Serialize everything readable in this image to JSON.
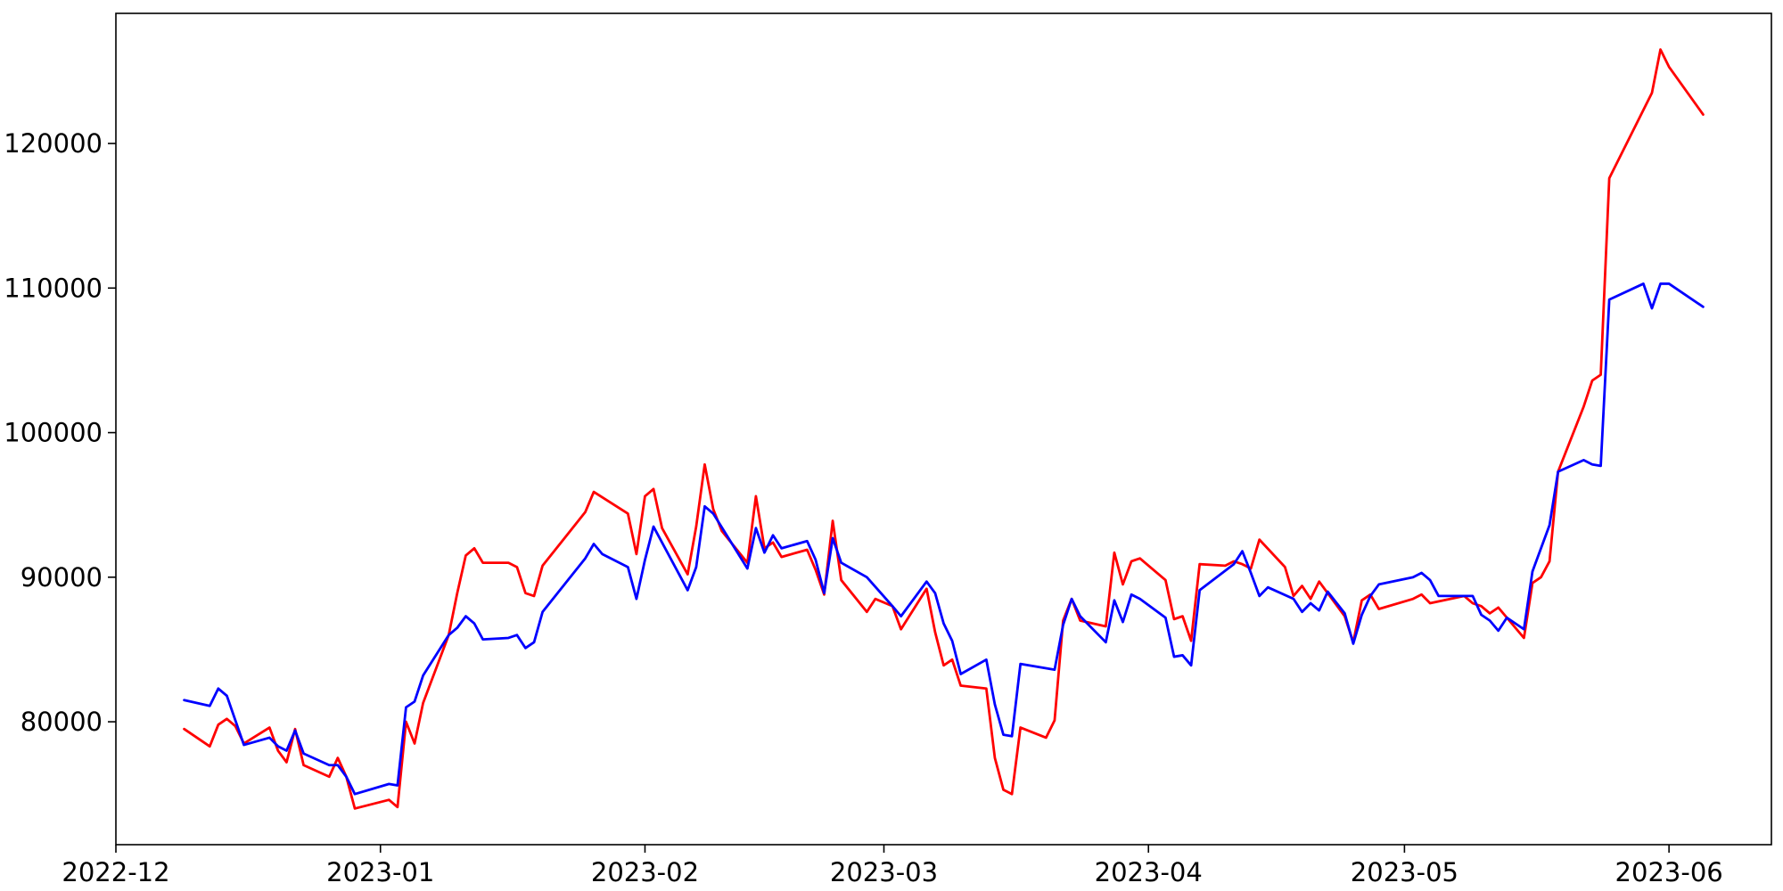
{
  "chart_data": {
    "type": "line",
    "title": "",
    "xlabel": "",
    "ylabel": "",
    "grid": false,
    "legend": "none",
    "xlim": [
      "2022-12-01",
      "2023-06-13"
    ],
    "ylim": [
      71500,
      129000
    ],
    "x_ticks": [
      "2022-12",
      "2023-01",
      "2023-02",
      "2023-03",
      "2023-04",
      "2023-05",
      "2023-06"
    ],
    "x_tick_dates": [
      "2022-12-01",
      "2023-01-01",
      "2023-02-01",
      "2023-03-01",
      "2023-04-01",
      "2023-05-01",
      "2023-06-01"
    ],
    "y_ticks": [
      80000,
      90000,
      100000,
      110000,
      120000
    ],
    "series": [
      {
        "color": "#ff0000",
        "points": [
          [
            "2022-12-09",
            79500
          ],
          [
            "2022-12-12",
            78300
          ],
          [
            "2022-12-13",
            79800
          ],
          [
            "2022-12-14",
            80200
          ],
          [
            "2022-12-15",
            79700
          ],
          [
            "2022-12-16",
            78500
          ],
          [
            "2022-12-19",
            79600
          ],
          [
            "2022-12-20",
            78000
          ],
          [
            "2022-12-21",
            77200
          ],
          [
            "2022-12-22",
            79500
          ],
          [
            "2022-12-23",
            77000
          ],
          [
            "2022-12-26",
            76200
          ],
          [
            "2022-12-27",
            77500
          ],
          [
            "2022-12-28",
            76200
          ],
          [
            "2022-12-29",
            74000
          ],
          [
            "2023-01-02",
            74600
          ],
          [
            "2023-01-03",
            74100
          ],
          [
            "2023-01-04",
            80000
          ],
          [
            "2023-01-05",
            78500
          ],
          [
            "2023-01-06",
            81300
          ],
          [
            "2023-01-09",
            86000
          ],
          [
            "2023-01-10",
            88900
          ],
          [
            "2023-01-11",
            91500
          ],
          [
            "2023-01-12",
            92000
          ],
          [
            "2023-01-13",
            91000
          ],
          [
            "2023-01-16",
            91000
          ],
          [
            "2023-01-17",
            90700
          ],
          [
            "2023-01-18",
            88900
          ],
          [
            "2023-01-19",
            88700
          ],
          [
            "2023-01-20",
            90800
          ],
          [
            "2023-01-25",
            94500
          ],
          [
            "2023-01-26",
            95900
          ],
          [
            "2023-01-30",
            94400
          ],
          [
            "2023-01-31",
            91600
          ],
          [
            "2023-02-01",
            95600
          ],
          [
            "2023-02-02",
            96100
          ],
          [
            "2023-02-03",
            93400
          ],
          [
            "2023-02-06",
            90200
          ],
          [
            "2023-02-07",
            93500
          ],
          [
            "2023-02-08",
            97800
          ],
          [
            "2023-02-09",
            94700
          ],
          [
            "2023-02-10",
            93200
          ],
          [
            "2023-02-13",
            91000
          ],
          [
            "2023-02-14",
            95600
          ],
          [
            "2023-02-15",
            92000
          ],
          [
            "2023-02-16",
            92400
          ],
          [
            "2023-02-17",
            91400
          ],
          [
            "2023-02-20",
            91900
          ],
          [
            "2023-02-21",
            90500
          ],
          [
            "2023-02-22",
            88800
          ],
          [
            "2023-02-23",
            93900
          ],
          [
            "2023-02-24",
            89800
          ],
          [
            "2023-02-27",
            87600
          ],
          [
            "2023-02-28",
            88500
          ],
          [
            "2023-03-02",
            88000
          ],
          [
            "2023-03-03",
            86400
          ],
          [
            "2023-03-06",
            89200
          ],
          [
            "2023-03-07",
            86200
          ],
          [
            "2023-03-08",
            83900
          ],
          [
            "2023-03-09",
            84300
          ],
          [
            "2023-03-10",
            82500
          ],
          [
            "2023-03-13",
            82300
          ],
          [
            "2023-03-14",
            77500
          ],
          [
            "2023-03-15",
            75300
          ],
          [
            "2023-03-16",
            75000
          ],
          [
            "2023-03-17",
            79600
          ],
          [
            "2023-03-20",
            78900
          ],
          [
            "2023-03-21",
            80100
          ],
          [
            "2023-03-22",
            87000
          ],
          [
            "2023-03-23",
            88500
          ],
          [
            "2023-03-24",
            87000
          ],
          [
            "2023-03-27",
            86600
          ],
          [
            "2023-03-28",
            91700
          ],
          [
            "2023-03-29",
            89500
          ],
          [
            "2023-03-30",
            91100
          ],
          [
            "2023-03-31",
            91300
          ],
          [
            "2023-04-03",
            89800
          ],
          [
            "2023-04-04",
            87100
          ],
          [
            "2023-04-05",
            87300
          ],
          [
            "2023-04-06",
            85600
          ],
          [
            "2023-04-07",
            90900
          ],
          [
            "2023-04-10",
            90800
          ],
          [
            "2023-04-11",
            91100
          ],
          [
            "2023-04-12",
            90900
          ],
          [
            "2023-04-13",
            90600
          ],
          [
            "2023-04-14",
            92600
          ],
          [
            "2023-04-17",
            90700
          ],
          [
            "2023-04-18",
            88700
          ],
          [
            "2023-04-19",
            89400
          ],
          [
            "2023-04-20",
            88500
          ],
          [
            "2023-04-21",
            89700
          ],
          [
            "2023-04-24",
            87300
          ],
          [
            "2023-04-25",
            85500
          ],
          [
            "2023-04-26",
            88400
          ],
          [
            "2023-04-27",
            88800
          ],
          [
            "2023-04-28",
            87800
          ],
          [
            "2023-05-02",
            88500
          ],
          [
            "2023-05-03",
            88800
          ],
          [
            "2023-05-04",
            88200
          ],
          [
            "2023-05-08",
            88700
          ],
          [
            "2023-05-09",
            88200
          ],
          [
            "2023-05-10",
            88000
          ],
          [
            "2023-05-11",
            87500
          ],
          [
            "2023-05-12",
            87900
          ],
          [
            "2023-05-15",
            85800
          ],
          [
            "2023-05-16",
            89600
          ],
          [
            "2023-05-17",
            90000
          ],
          [
            "2023-05-18",
            91100
          ],
          [
            "2023-05-19",
            97300
          ],
          [
            "2023-05-22",
            101800
          ],
          [
            "2023-05-23",
            103600
          ],
          [
            "2023-05-24",
            104000
          ],
          [
            "2023-05-25",
            117600
          ],
          [
            "2023-05-30",
            123500
          ],
          [
            "2023-05-31",
            126500
          ],
          [
            "2023-06-01",
            125300
          ],
          [
            "2023-06-05",
            122000
          ]
        ]
      },
      {
        "color": "#0000ff",
        "points": [
          [
            "2022-12-09",
            81500
          ],
          [
            "2022-12-12",
            81100
          ],
          [
            "2022-12-13",
            82300
          ],
          [
            "2022-12-14",
            81800
          ],
          [
            "2022-12-16",
            78400
          ],
          [
            "2022-12-19",
            78900
          ],
          [
            "2022-12-20",
            78300
          ],
          [
            "2022-12-21",
            78000
          ],
          [
            "2022-12-22",
            79400
          ],
          [
            "2022-12-23",
            77800
          ],
          [
            "2022-12-26",
            77000
          ],
          [
            "2022-12-27",
            77000
          ],
          [
            "2022-12-28",
            76200
          ],
          [
            "2022-12-29",
            75000
          ],
          [
            "2023-01-02",
            75700
          ],
          [
            "2023-01-03",
            75600
          ],
          [
            "2023-01-04",
            81000
          ],
          [
            "2023-01-05",
            81400
          ],
          [
            "2023-01-06",
            83200
          ],
          [
            "2023-01-09",
            86000
          ],
          [
            "2023-01-10",
            86500
          ],
          [
            "2023-01-11",
            87300
          ],
          [
            "2023-01-12",
            86800
          ],
          [
            "2023-01-13",
            85700
          ],
          [
            "2023-01-16",
            85800
          ],
          [
            "2023-01-17",
            86000
          ],
          [
            "2023-01-18",
            85100
          ],
          [
            "2023-01-19",
            85500
          ],
          [
            "2023-01-20",
            87600
          ],
          [
            "2023-01-25",
            91300
          ],
          [
            "2023-01-26",
            92300
          ],
          [
            "2023-01-27",
            91600
          ],
          [
            "2023-01-30",
            90700
          ],
          [
            "2023-01-31",
            88500
          ],
          [
            "2023-02-01",
            91200
          ],
          [
            "2023-02-02",
            93500
          ],
          [
            "2023-02-06",
            89100
          ],
          [
            "2023-02-07",
            90700
          ],
          [
            "2023-02-08",
            94900
          ],
          [
            "2023-02-09",
            94400
          ],
          [
            "2023-02-13",
            90600
          ],
          [
            "2023-02-14",
            93400
          ],
          [
            "2023-02-15",
            91700
          ],
          [
            "2023-02-16",
            92900
          ],
          [
            "2023-02-17",
            92000
          ],
          [
            "2023-02-20",
            92500
          ],
          [
            "2023-02-21",
            91200
          ],
          [
            "2023-02-22",
            88900
          ],
          [
            "2023-02-23",
            92700
          ],
          [
            "2023-02-24",
            91000
          ],
          [
            "2023-02-27",
            90000
          ],
          [
            "2023-03-02",
            88000
          ],
          [
            "2023-03-03",
            87300
          ],
          [
            "2023-03-06",
            89700
          ],
          [
            "2023-03-07",
            88900
          ],
          [
            "2023-03-08",
            86800
          ],
          [
            "2023-03-09",
            85600
          ],
          [
            "2023-03-10",
            83300
          ],
          [
            "2023-03-13",
            84300
          ],
          [
            "2023-03-14",
            81200
          ],
          [
            "2023-03-15",
            79100
          ],
          [
            "2023-03-16",
            79000
          ],
          [
            "2023-03-17",
            84000
          ],
          [
            "2023-03-21",
            83600
          ],
          [
            "2023-03-22",
            86700
          ],
          [
            "2023-03-23",
            88500
          ],
          [
            "2023-03-24",
            87300
          ],
          [
            "2023-03-27",
            85500
          ],
          [
            "2023-03-28",
            88400
          ],
          [
            "2023-03-29",
            86900
          ],
          [
            "2023-03-30",
            88800
          ],
          [
            "2023-03-31",
            88500
          ],
          [
            "2023-04-03",
            87200
          ],
          [
            "2023-04-04",
            84500
          ],
          [
            "2023-04-05",
            84600
          ],
          [
            "2023-04-06",
            83900
          ],
          [
            "2023-04-07",
            89100
          ],
          [
            "2023-04-11",
            90900
          ],
          [
            "2023-04-12",
            91800
          ],
          [
            "2023-04-13",
            90300
          ],
          [
            "2023-04-14",
            88700
          ],
          [
            "2023-04-15",
            89300
          ],
          [
            "2023-04-18",
            88500
          ],
          [
            "2023-04-19",
            87600
          ],
          [
            "2023-04-20",
            88200
          ],
          [
            "2023-04-21",
            87700
          ],
          [
            "2023-04-22",
            89000
          ],
          [
            "2023-04-24",
            87500
          ],
          [
            "2023-04-25",
            85400
          ],
          [
            "2023-04-26",
            87400
          ],
          [
            "2023-04-27",
            88700
          ],
          [
            "2023-04-28",
            89500
          ],
          [
            "2023-05-02",
            90000
          ],
          [
            "2023-05-03",
            90300
          ],
          [
            "2023-05-04",
            89800
          ],
          [
            "2023-05-05",
            88700
          ],
          [
            "2023-05-08",
            88700
          ],
          [
            "2023-05-09",
            88700
          ],
          [
            "2023-05-10",
            87400
          ],
          [
            "2023-05-11",
            87000
          ],
          [
            "2023-05-12",
            86300
          ],
          [
            "2023-05-13",
            87200
          ],
          [
            "2023-05-15",
            86400
          ],
          [
            "2023-05-16",
            90400
          ],
          [
            "2023-05-18",
            93600
          ],
          [
            "2023-05-19",
            97300
          ],
          [
            "2023-05-22",
            98100
          ],
          [
            "2023-05-23",
            97800
          ],
          [
            "2023-05-24",
            97700
          ],
          [
            "2023-05-25",
            109200
          ],
          [
            "2023-05-29",
            110300
          ],
          [
            "2023-05-30",
            108600
          ],
          [
            "2023-05-31",
            110300
          ],
          [
            "2023-06-01",
            110300
          ],
          [
            "2023-06-05",
            108700
          ]
        ]
      }
    ]
  }
}
